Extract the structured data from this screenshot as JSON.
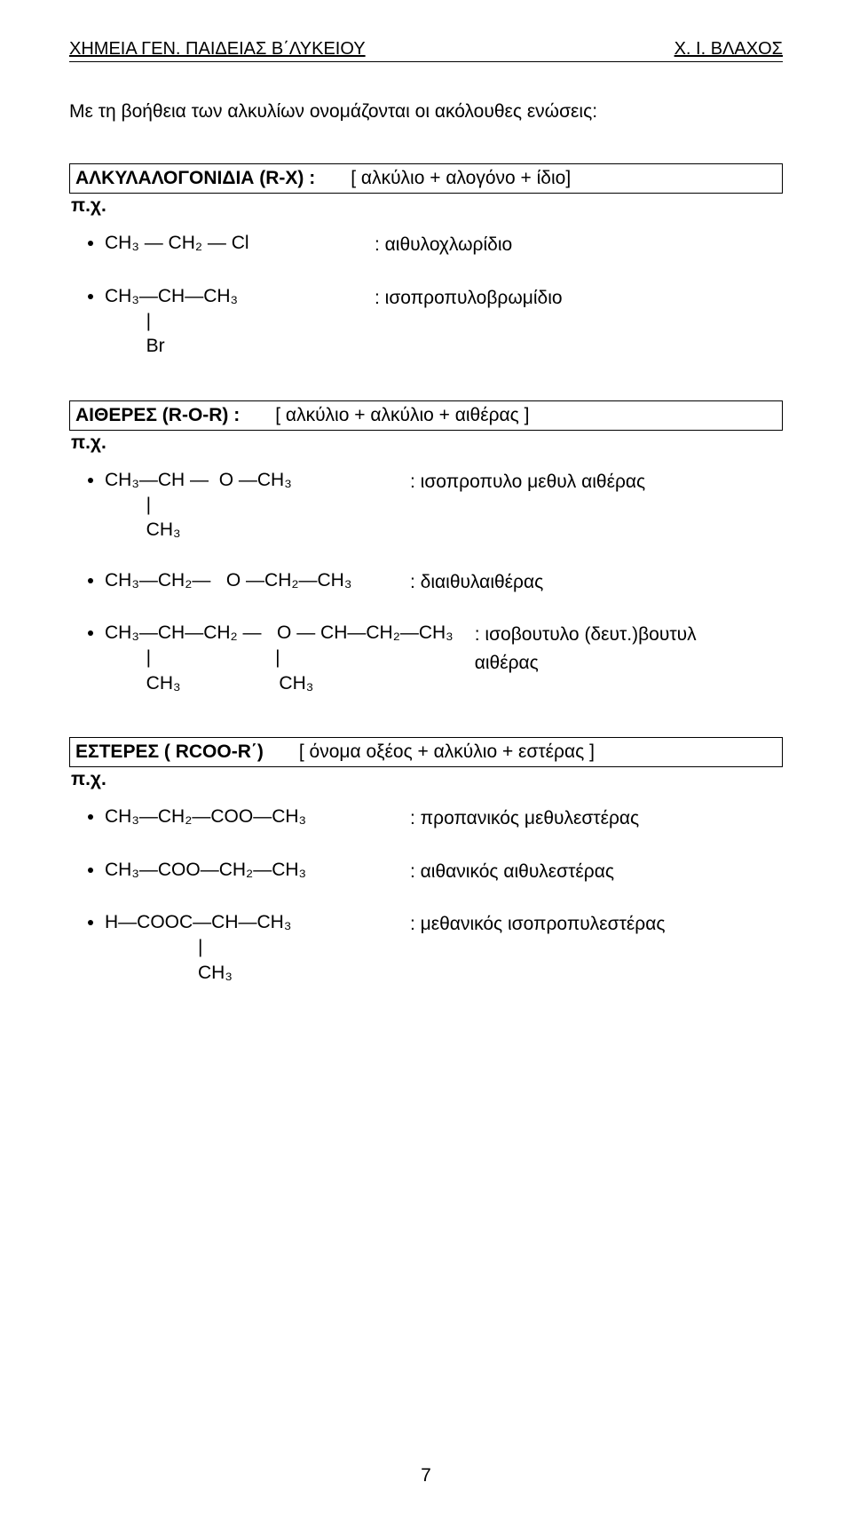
{
  "header": {
    "left": "ΧΗΜΕΙΑ ΓΕΝ. ΠΑΙΔΕΙΑΣ Β΄ΛΥΚΕΙΟΥ",
    "right": "Χ. Ι. ΒΛΑΧΟΣ"
  },
  "intro": "Με τη βοήθεια των αλκυλίων ονομάζονται οι ακόλουθες ενώσεις:",
  "eg_label": "π.χ.",
  "sections": [
    {
      "title": "ΑΛΚΥΛΑΛΟΓΟΝΙΔΙΑ (R-X) :",
      "pattern": "[ αλκύλιο + αλογόνο + ίδιο]",
      "items": [
        {
          "formula": "CH₃ ― CH₂ ― Cl",
          "desc": ": αιθυλοχλωρίδιο",
          "left_min_width": 280
        },
        {
          "formula": "CH₃―CH―CH₃\n        |\n        Br",
          "desc": ": ισοπροπυλοβρωμίδιο",
          "left_min_width": 280
        }
      ]
    },
    {
      "title": "ΑΙΘΕΡΕΣ (R-O-R) :",
      "pattern": "[ αλκύλιο + αλκύλιο + αιθέρας ]",
      "items": [
        {
          "formula": "CH₃―CH ―  O ―CH₃\n        |\n        CH₃",
          "desc": ": ισοπροπυλο μεθυλ αιθέρας",
          "left_min_width": 320
        },
        {
          "formula": "CH₃―CH₂―   O ―CH₂―CH₃",
          "desc": ": διαιθυλαιθέρας",
          "left_min_width": 320
        },
        {
          "formula": "CH₃―CH―CH₂ ―   O ― CH―CH₂―CH₃\n        |                        |\n        CH₃                   CH₃",
          "desc": ": ισοβουτυλο (δευτ.)βουτυλ\n  αιθέρας",
          "left_min_width": 0
        }
      ]
    },
    {
      "title": "ΕΣΤΕΡΕΣ ( RCOO-R΄)",
      "pattern": "[ όνομα οξέος + αλκύλιο + εστέρας ]",
      "items": [
        {
          "formula": "CH₃―CH₂―COO―CH₃",
          "desc": ": προπανικός μεθυλεστέρας",
          "left_min_width": 320
        },
        {
          "formula": "CH₃―COO―CH₂―CH₃",
          "desc": ": αιθανικός αιθυλεστέρας",
          "left_min_width": 320
        },
        {
          "formula": "H―COOC―CH―CH₃\n                  |\n                  CH₃",
          "desc": ": μεθανικός ισοπροπυλεστέρας",
          "left_min_width": 320
        }
      ]
    }
  ],
  "page_number": "7",
  "colors": {
    "text": "#000000",
    "background": "#ffffff",
    "border": "#000000"
  },
  "typography": {
    "body_fontsize_pt": 16,
    "header_fontsize_pt": 15,
    "font_family": "Arial"
  }
}
